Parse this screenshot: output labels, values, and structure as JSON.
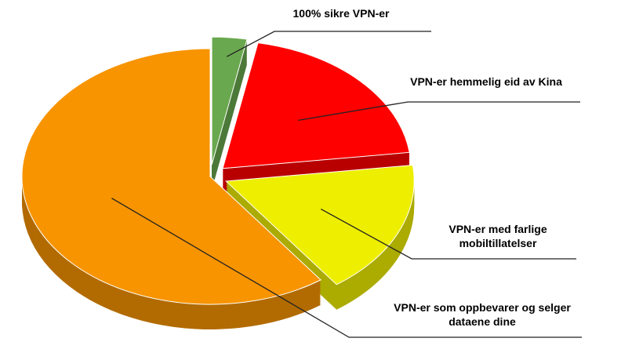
{
  "chart_data": {
    "type": "pie3d",
    "categories": [
      "100% sikre VPN-er",
      "VPN-er hemmelig eid av Kina",
      "VPN-er med farlige mobiltillatelser",
      "VPN-er som oppbevarer og selger dataene dine"
    ],
    "values": [
      3,
      20,
      17,
      60
    ],
    "colors": [
      "#6aa84f",
      "#ff0000",
      "#eeee00",
      "#f79400"
    ]
  }
}
